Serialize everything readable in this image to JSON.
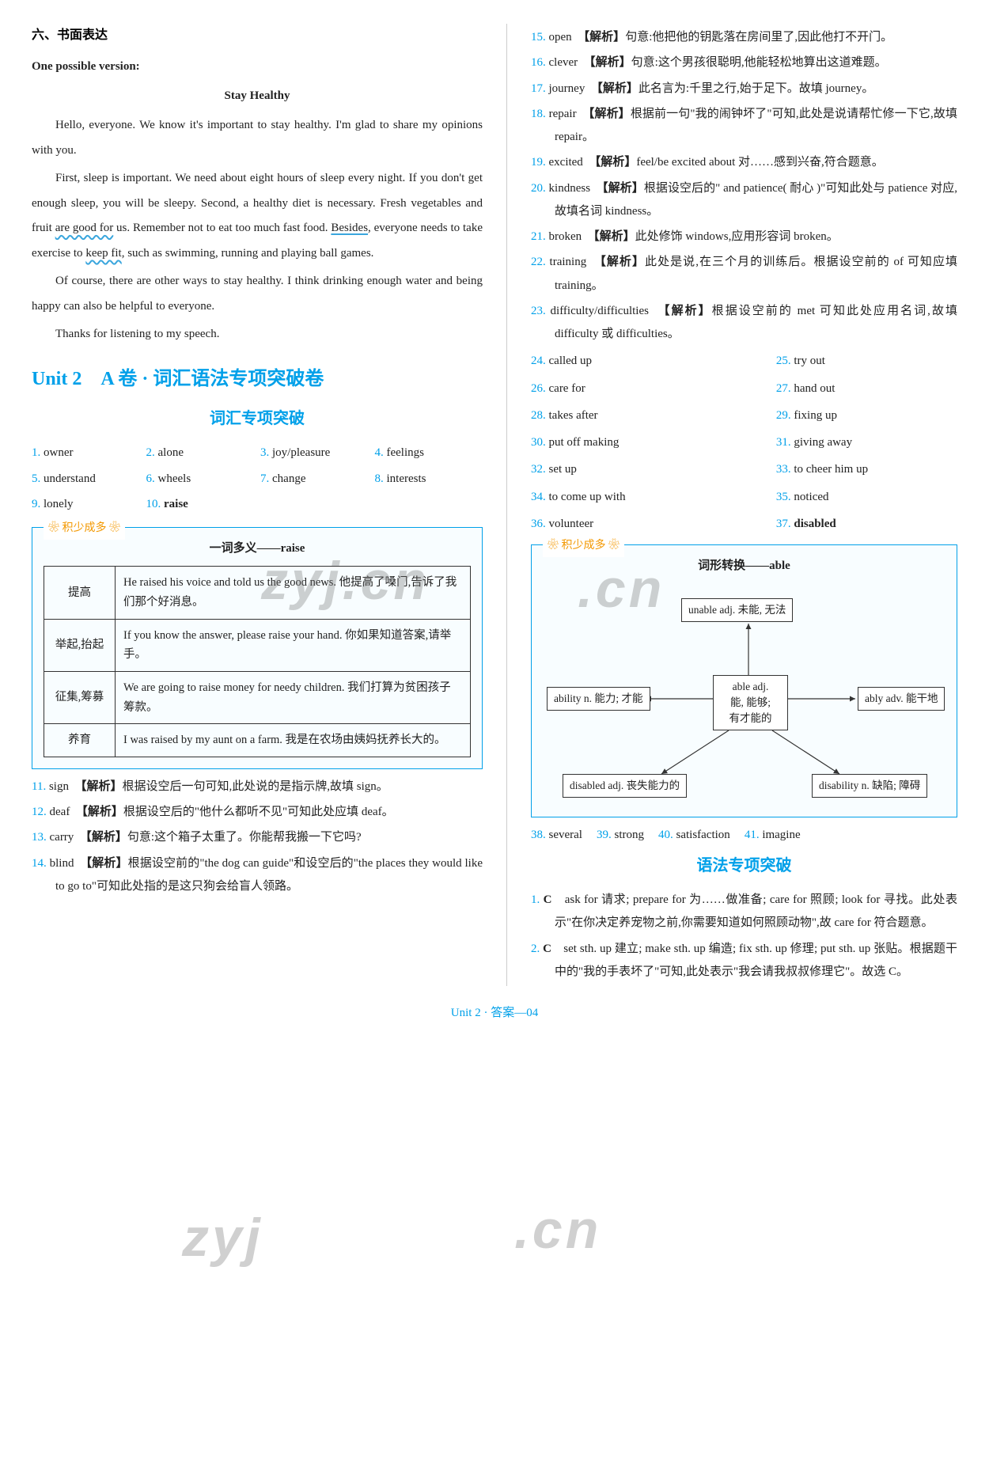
{
  "left": {
    "section_title": "六、书面表达",
    "version_label": "One possible version:",
    "essay_title": "Stay Healthy",
    "p1_a": "Hello, everyone. We know it's important to stay healthy. I'm glad to share my opinions with you.",
    "p2_a": "First, sleep is important. We need about eight hours of sleep every night. If you don't get enough sleep, you will be sleepy. Second, a healthy diet is necessary. Fresh vegetables and fruit ",
    "p2_u1": "are good for",
    "p2_b": " us. Remember not to eat too much fast food. ",
    "p2_u2": "Besides",
    "p2_c": ", everyone needs to take exercise to ",
    "p2_u3": "keep fit",
    "p2_d": ", such as swimming, running and playing ball games.",
    "p3": "Of course, there are other ways to stay healthy. I think drinking enough water and being happy can also be helpful to everyone.",
    "p4": "Thanks for listening to my speech.",
    "unit_title": "Unit 2　A 卷 · 词汇语法专项突破卷",
    "vocab_h": "词汇专项突破",
    "vocab": [
      {
        "n": "1.",
        "w": "owner"
      },
      {
        "n": "2.",
        "w": "alone"
      },
      {
        "n": "3.",
        "w": "joy/pleasure"
      },
      {
        "n": "4.",
        "w": "feelings"
      },
      {
        "n": "5.",
        "w": "understand"
      },
      {
        "n": "6.",
        "w": "wheels"
      },
      {
        "n": "7.",
        "w": "change"
      },
      {
        "n": "8.",
        "w": "interests"
      },
      {
        "n": "9.",
        "w": "lonely"
      },
      {
        "n": "10.",
        "w": "raise",
        "bold": true
      }
    ],
    "box_label": "积少成多",
    "box_title": "一词多义——raise",
    "raise_rows": [
      {
        "k": "提高",
        "v": "He raised his voice and told us the good news. 他提高了嗓门,告诉了我们那个好消息。"
      },
      {
        "k": "举起,抬起",
        "v": "If you know the answer, please raise your hand. 你如果知道答案,请举手。"
      },
      {
        "k": "征集,筹募",
        "v": "We are going to raise money for needy children. 我们打算为贫困孩子筹款。"
      },
      {
        "k": "养育",
        "v": "I was raised by my aunt on a farm. 我是在农场由姨妈抚养长大的。"
      }
    ],
    "items11_14": [
      {
        "n": "11.",
        "w": "sign",
        "t": "【解析】根据设空后一句可知,此处说的是指示牌,故填 sign。"
      },
      {
        "n": "12.",
        "w": "deaf",
        "t": "【解析】根据设空后的\"他什么都听不见\"可知此处应填 deaf。"
      },
      {
        "n": "13.",
        "w": "carry",
        "t": "【解析】句意:这个箱子太重了。你能帮我搬一下它吗?"
      },
      {
        "n": "14.",
        "w": "blind",
        "t": "【解析】根据设空前的\"the dog can guide\"和设空后的\"the places they would like to go to\"可知此处指的是这只狗会给盲人领路。"
      }
    ]
  },
  "right": {
    "items15_23": [
      {
        "n": "15.",
        "w": "open",
        "t": "【解析】句意:他把他的钥匙落在房间里了,因此他打不开门。"
      },
      {
        "n": "16.",
        "w": "clever",
        "t": "【解析】句意:这个男孩很聪明,他能轻松地算出这道难题。"
      },
      {
        "n": "17.",
        "w": "journey",
        "t": "【解析】此名言为:千里之行,始于足下。故填 journey。"
      },
      {
        "n": "18.",
        "w": "repair",
        "t": "【解析】根据前一句\"我的闹钟坏了\"可知,此处是说请帮忙修一下它,故填 repair。"
      },
      {
        "n": "19.",
        "w": "excited",
        "t": "【解析】feel/be excited about 对……感到兴奋,符合题意。"
      },
      {
        "n": "20.",
        "w": "kindness",
        "t": "【解析】根据设空后的\" and patience( 耐心 )\"可知此处与 patience 对应,故填名词 kindness。"
      },
      {
        "n": "21.",
        "w": "broken",
        "t": "【解析】此处修饰 windows,应用形容词 broken。"
      },
      {
        "n": "22.",
        "w": "training",
        "t": "【解析】此处是说,在三个月的训练后。根据设空前的 of 可知应填 training。"
      },
      {
        "n": "23.",
        "w": "difficulty/difficulties",
        "t": "【解析】根据设空前的 met 可知此处应用名词,故填 difficulty 或 difficulties。"
      }
    ],
    "items24_37": [
      {
        "n": "24.",
        "w": "called up"
      },
      {
        "n": "25.",
        "w": "try out"
      },
      {
        "n": "26.",
        "w": "care for"
      },
      {
        "n": "27.",
        "w": "hand out"
      },
      {
        "n": "28.",
        "w": "takes after"
      },
      {
        "n": "29.",
        "w": "fixing up"
      },
      {
        "n": "30.",
        "w": "put off making"
      },
      {
        "n": "31.",
        "w": "giving away"
      },
      {
        "n": "32.",
        "w": "set up"
      },
      {
        "n": "33.",
        "w": "to cheer him up"
      },
      {
        "n": "34.",
        "w": "to come up with"
      },
      {
        "n": "35.",
        "w": "noticed"
      },
      {
        "n": "36.",
        "w": "volunteer"
      },
      {
        "n": "37.",
        "w": "disabled",
        "bold": true
      }
    ],
    "box_label": "积少成多",
    "box_title": "词形转换——able",
    "nodes": {
      "center": "able adj.\n能, 能够;\n有才能的",
      "top": "unable adj. 未能, 无法",
      "left": "ability n. 能力; 才能",
      "right": "ably adv. 能干地",
      "bl": "disabled adj. 丧失能力的",
      "br": "disability n. 缺陷; 障碍"
    },
    "items38_41": [
      {
        "n": "38.",
        "w": "several"
      },
      {
        "n": "39.",
        "w": "strong"
      },
      {
        "n": "40.",
        "w": "satisfaction"
      },
      {
        "n": "41.",
        "w": "imagine"
      }
    ],
    "grammar_h": "语法专项突破",
    "g1": {
      "n": "1.",
      "ans": "C",
      "t": "ask for 请求; prepare for 为……做准备; care for 照顾; look for 寻找。此处表示\"在你决定养宠物之前,你需要知道如何照顾动物\",故 care for 符合题意。"
    },
    "g2": {
      "n": "2.",
      "ans": "C",
      "t": "set sth. up 建立; make sth. up 编造; fix sth. up 修理; put sth. up 张贴。根据题干中的\"我的手表坏了\"可知,此处表示\"我会请我叔叔修理它\"。故选 C。"
    }
  },
  "footer": "Unit 2 · 答案—04",
  "colors": {
    "blue": "#00a0e9",
    "orange": "#f39800"
  }
}
